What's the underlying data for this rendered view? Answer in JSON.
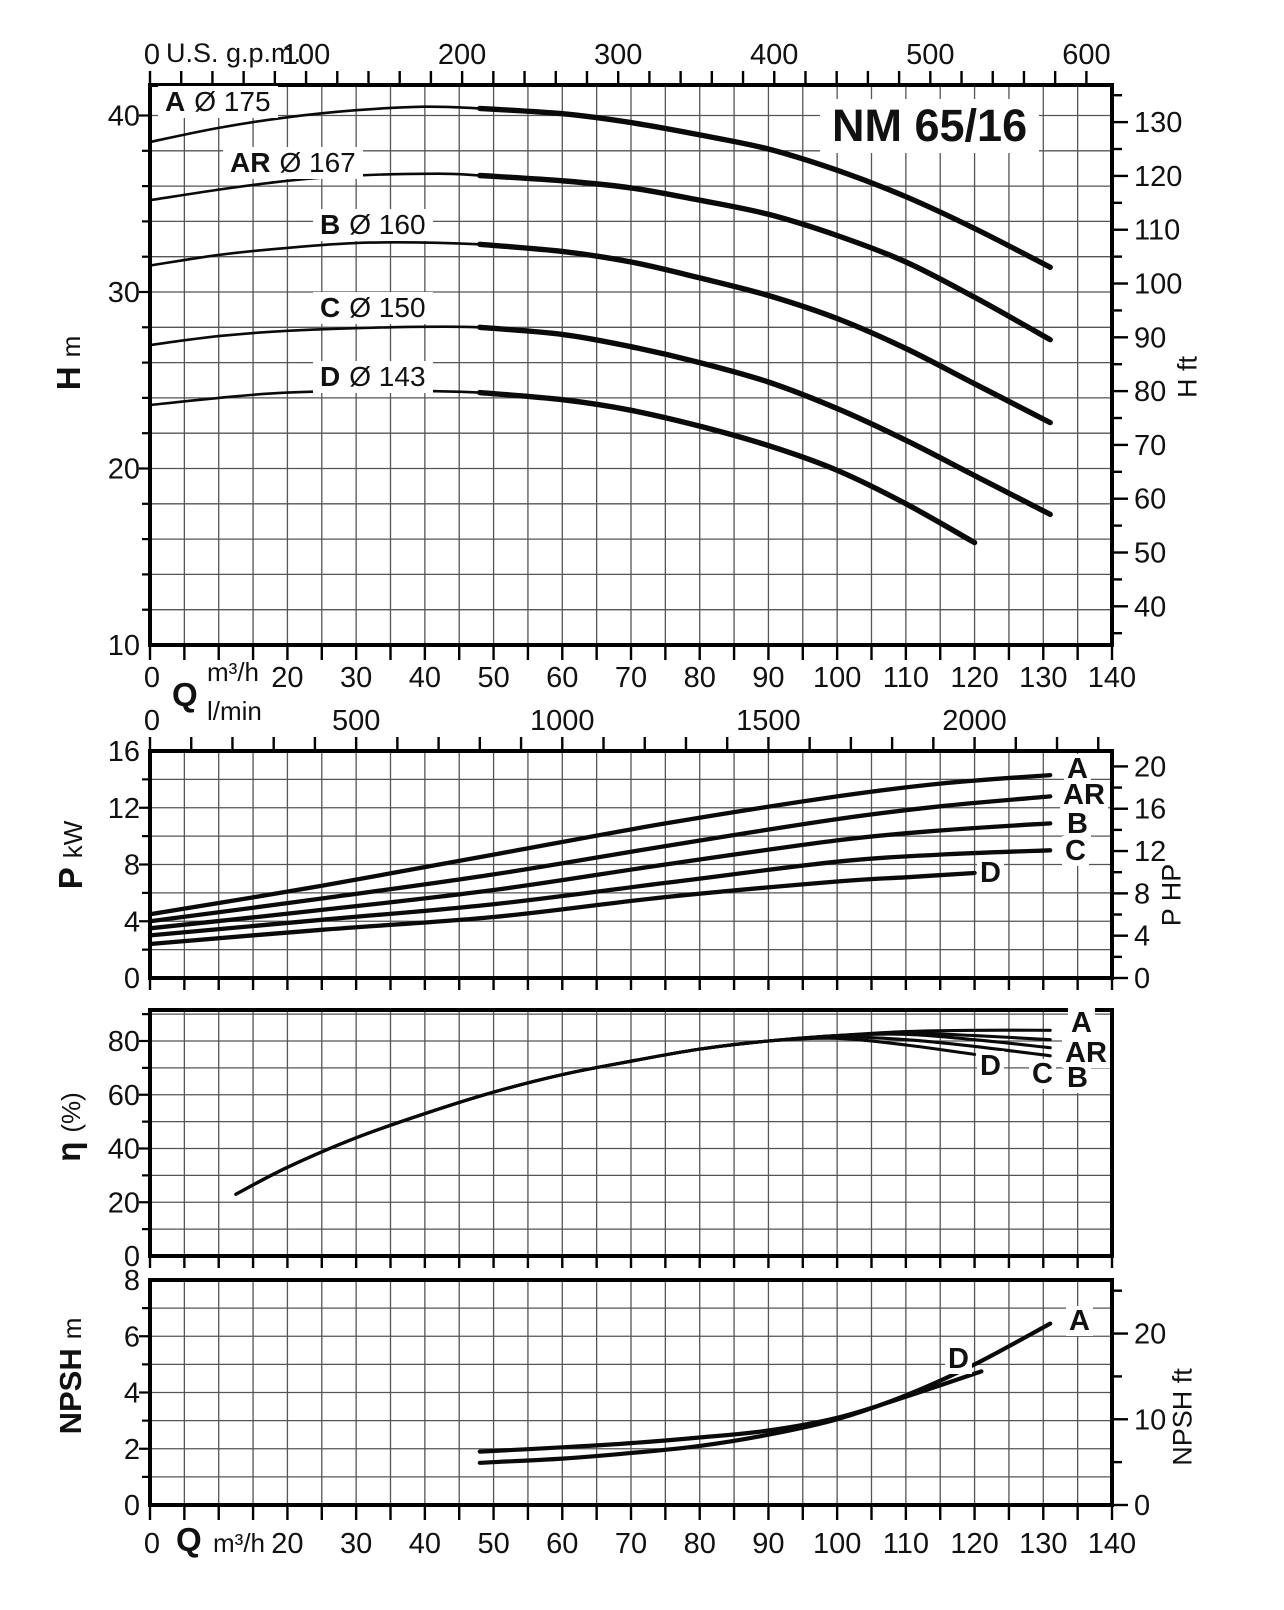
{
  "title": "NM 65/16",
  "labels": {
    "gpm": "U.S. g.p.m.",
    "q": "Q",
    "m3h": "m³/h",
    "lmin": "l/min"
  },
  "axis_titles": {
    "h": {
      "main": "H",
      "unit": "m"
    },
    "p": {
      "main": "P",
      "unit": "kW"
    },
    "eta": {
      "main": "η",
      "unit": "(%)"
    },
    "npsh": {
      "main": "NPSH",
      "unit": "m"
    },
    "h_ft": "H ft",
    "p_hp": "P HP",
    "npsh_ft": "NPSH ft"
  },
  "colors": {
    "curve": "#0a0a0a",
    "grid": "#555555",
    "frame": "#000000"
  },
  "chart_data": [
    {
      "id": "head",
      "type": "line",
      "title": "NM 65/16",
      "xlabel": "Q m³/h",
      "x_top_label": "U.S. g.p.m.",
      "ylabel": "H m",
      "y_right_label": "H ft",
      "xlim": [
        0,
        140
      ],
      "ylim": [
        10,
        41.7
      ],
      "grid": true,
      "legend_position": "on-curve",
      "x_ticks": [
        0,
        20,
        30,
        40,
        50,
        60,
        70,
        80,
        90,
        100,
        110,
        120,
        130,
        140
      ],
      "x_minor_step": 5,
      "gpm_ticks": [
        0,
        100,
        200,
        300,
        400,
        500,
        600
      ],
      "gpm_minor_step": 20,
      "y_ticks": [
        10,
        20,
        30,
        40
      ],
      "y_minor_step": 2,
      "yft_ticks": [
        40,
        50,
        60,
        70,
        80,
        90,
        100,
        110,
        120,
        130
      ],
      "yft_minor_step": 5,
      "series": [
        {
          "name": "A",
          "diameter": "Ø 175",
          "thick_from": 48,
          "points": [
            [
              0,
              38.5
            ],
            [
              10,
              39.3
            ],
            [
              20,
              39.9
            ],
            [
              30,
              40.3
            ],
            [
              40,
              40.5
            ],
            [
              48,
              40.4
            ],
            [
              60,
              40.1
            ],
            [
              70,
              39.6
            ],
            [
              80,
              38.9
            ],
            [
              90,
              38.1
            ],
            [
              100,
              36.9
            ],
            [
              110,
              35.4
            ],
            [
              120,
              33.6
            ],
            [
              131,
              31.4
            ]
          ]
        },
        {
          "name": "AR",
          "diameter": "Ø 167",
          "thick_from": 48,
          "points": [
            [
              0,
              35.2
            ],
            [
              10,
              35.8
            ],
            [
              20,
              36.3
            ],
            [
              30,
              36.6
            ],
            [
              42,
              36.7
            ],
            [
              48,
              36.6
            ],
            [
              60,
              36.3
            ],
            [
              70,
              35.9
            ],
            [
              80,
              35.2
            ],
            [
              90,
              34.4
            ],
            [
              100,
              33.2
            ],
            [
              110,
              31.7
            ],
            [
              120,
              29.7
            ],
            [
              131,
              27.3
            ]
          ]
        },
        {
          "name": "B",
          "diameter": "Ø 160",
          "thick_from": 48,
          "points": [
            [
              0,
              31.5
            ],
            [
              10,
              32.1
            ],
            [
              20,
              32.5
            ],
            [
              32,
              32.8
            ],
            [
              48,
              32.7
            ],
            [
              60,
              32.3
            ],
            [
              70,
              31.7
            ],
            [
              80,
              30.8
            ],
            [
              90,
              29.8
            ],
            [
              100,
              28.5
            ],
            [
              110,
              26.8
            ],
            [
              120,
              24.8
            ],
            [
              131,
              22.6
            ]
          ]
        },
        {
          "name": "C",
          "diameter": "Ø 150",
          "thick_from": 48,
          "points": [
            [
              0,
              27.0
            ],
            [
              10,
              27.5
            ],
            [
              20,
              27.8
            ],
            [
              35,
              28.0
            ],
            [
              48,
              28.0
            ],
            [
              60,
              27.6
            ],
            [
              70,
              26.9
            ],
            [
              80,
              26.0
            ],
            [
              90,
              24.9
            ],
            [
              100,
              23.4
            ],
            [
              110,
              21.6
            ],
            [
              120,
              19.6
            ],
            [
              131,
              17.4
            ]
          ]
        },
        {
          "name": "D",
          "diameter": "Ø 143",
          "thick_from": 48,
          "points": [
            [
              0,
              23.6
            ],
            [
              10,
              24.0
            ],
            [
              20,
              24.3
            ],
            [
              35,
              24.4
            ],
            [
              48,
              24.3
            ],
            [
              60,
              23.9
            ],
            [
              70,
              23.3
            ],
            [
              80,
              22.4
            ],
            [
              90,
              21.3
            ],
            [
              100,
              19.9
            ],
            [
              110,
              18.0
            ],
            [
              120,
              15.8
            ]
          ]
        }
      ]
    },
    {
      "id": "power",
      "type": "line",
      "xlabel": "Q m³/h",
      "x_top_label": "Q l/min",
      "ylabel": "P kW",
      "y_right_label": "P HP",
      "xlim": [
        0,
        140
      ],
      "ylim": [
        0,
        16
      ],
      "grid": true,
      "legend_position": "right-of-curve",
      "lmin_ticks": [
        0,
        500,
        1000,
        1500,
        2000
      ],
      "lmin_minor_step": 100,
      "x_minor_step": 5,
      "y_ticks": [
        0,
        4,
        8,
        12,
        16
      ],
      "y_minor_step": 2,
      "yhp_ticks": [
        0,
        4,
        8,
        12,
        16,
        20
      ],
      "yhp_minor_step": 2,
      "series": [
        {
          "name": "A",
          "points": [
            [
              0,
              4.5
            ],
            [
              25,
              6.5
            ],
            [
              50,
              8.7
            ],
            [
              75,
              10.9
            ],
            [
              100,
              12.8
            ],
            [
              115,
              13.7
            ],
            [
              131,
              14.3
            ]
          ]
        },
        {
          "name": "AR",
          "points": [
            [
              0,
              4.0
            ],
            [
              25,
              5.6
            ],
            [
              50,
              7.3
            ],
            [
              75,
              9.3
            ],
            [
              100,
              11.2
            ],
            [
              115,
              12.1
            ],
            [
              131,
              12.8
            ]
          ]
        },
        {
          "name": "B",
          "points": [
            [
              0,
              3.5
            ],
            [
              25,
              4.8
            ],
            [
              50,
              6.2
            ],
            [
              75,
              8.0
            ],
            [
              100,
              9.7
            ],
            [
              115,
              10.4
            ],
            [
              131,
              10.9
            ]
          ]
        },
        {
          "name": "C",
          "points": [
            [
              0,
              3.0
            ],
            [
              25,
              4.1
            ],
            [
              50,
              5.2
            ],
            [
              75,
              6.7
            ],
            [
              100,
              8.2
            ],
            [
              115,
              8.7
            ],
            [
              131,
              9.0
            ]
          ]
        },
        {
          "name": "D",
          "points": [
            [
              0,
              2.4
            ],
            [
              25,
              3.4
            ],
            [
              50,
              4.3
            ],
            [
              75,
              5.7
            ],
            [
              100,
              6.8
            ],
            [
              110,
              7.1
            ],
            [
              120,
              7.4
            ]
          ]
        }
      ]
    },
    {
      "id": "efficiency",
      "type": "line",
      "xlabel": "Q m³/h",
      "ylabel": "η (%)",
      "xlim": [
        0,
        140
      ],
      "ylim": [
        0,
        91.5
      ],
      "grid": true,
      "legend_position": "right-of-curve",
      "x_minor_step": 5,
      "y_ticks": [
        0,
        20,
        40,
        60,
        80
      ],
      "y_minor_step": 10,
      "series": [
        {
          "name": "A",
          "points": [
            [
              12.5,
              23
            ],
            [
              20,
              33
            ],
            [
              30,
              44
            ],
            [
              40,
              53
            ],
            [
              50,
              61
            ],
            [
              60,
              67.5
            ],
            [
              70,
              72.5
            ],
            [
              80,
              77
            ],
            [
              90,
              80
            ],
            [
              100,
              82
            ],
            [
              110,
              83.5
            ],
            [
              120,
              84
            ],
            [
              131,
              84
            ]
          ]
        },
        {
          "name": "AR",
          "points": [
            [
              12.5,
              23
            ],
            [
              20,
              33
            ],
            [
              30,
              44
            ],
            [
              40,
              53
            ],
            [
              50,
              61
            ],
            [
              60,
              67.5
            ],
            [
              70,
              72.5
            ],
            [
              80,
              77
            ],
            [
              90,
              80
            ],
            [
              100,
              82
            ],
            [
              110,
              83
            ],
            [
              120,
              82
            ],
            [
              131,
              80.5
            ]
          ]
        },
        {
          "name": "B",
          "points": [
            [
              12.5,
              23
            ],
            [
              20,
              33
            ],
            [
              30,
              44
            ],
            [
              40,
              53
            ],
            [
              50,
              61
            ],
            [
              60,
              67.5
            ],
            [
              70,
              72.5
            ],
            [
              80,
              77
            ],
            [
              90,
              80
            ],
            [
              100,
              82
            ],
            [
              110,
              82.5
            ],
            [
              120,
              80.5
            ],
            [
              131,
              77.5
            ]
          ]
        },
        {
          "name": "C",
          "points": [
            [
              12.5,
              23
            ],
            [
              20,
              33
            ],
            [
              30,
              44
            ],
            [
              40,
              53
            ],
            [
              50,
              61
            ],
            [
              60,
              67.5
            ],
            [
              70,
              72.5
            ],
            [
              80,
              77
            ],
            [
              90,
              80
            ],
            [
              100,
              81.5
            ],
            [
              110,
              80.5
            ],
            [
              120,
              78
            ],
            [
              131,
              74.5
            ]
          ]
        },
        {
          "name": "D",
          "points": [
            [
              12.5,
              23
            ],
            [
              20,
              33
            ],
            [
              30,
              44
            ],
            [
              40,
              53
            ],
            [
              50,
              61
            ],
            [
              60,
              67.5
            ],
            [
              70,
              72.5
            ],
            [
              80,
              77
            ],
            [
              90,
              80
            ],
            [
              100,
              81
            ],
            [
              110,
              78.5
            ],
            [
              120,
              75
            ]
          ]
        }
      ]
    },
    {
      "id": "npsh",
      "type": "line",
      "xlabel": "Q m³/h",
      "ylabel": "NPSH m",
      "y_right_label": "NPSH ft",
      "xlim": [
        0,
        140
      ],
      "ylim": [
        0,
        8
      ],
      "grid": true,
      "legend_position": "on-curve",
      "x_ticks": [
        0,
        20,
        30,
        40,
        50,
        60,
        70,
        80,
        90,
        100,
        110,
        120,
        130,
        140
      ],
      "x_minor_step": 5,
      "y_ticks": [
        0,
        2,
        4,
        6,
        8
      ],
      "y_minor_step": 1,
      "yft_ticks": [
        0,
        10,
        20
      ],
      "yft_minor_step": 5,
      "series": [
        {
          "name": "A",
          "points": [
            [
              48,
              1.5
            ],
            [
              60,
              1.65
            ],
            [
              70,
              1.85
            ],
            [
              80,
              2.1
            ],
            [
              90,
              2.5
            ],
            [
              100,
              3.05
            ],
            [
              110,
              3.9
            ],
            [
              120,
              5.0
            ],
            [
              131,
              6.45
            ]
          ]
        },
        {
          "name": "D",
          "points": [
            [
              48,
              1.9
            ],
            [
              60,
              2.05
            ],
            [
              70,
              2.2
            ],
            [
              80,
              2.4
            ],
            [
              90,
              2.65
            ],
            [
              100,
              3.1
            ],
            [
              110,
              3.85
            ],
            [
              121,
              4.75
            ]
          ]
        }
      ]
    }
  ]
}
